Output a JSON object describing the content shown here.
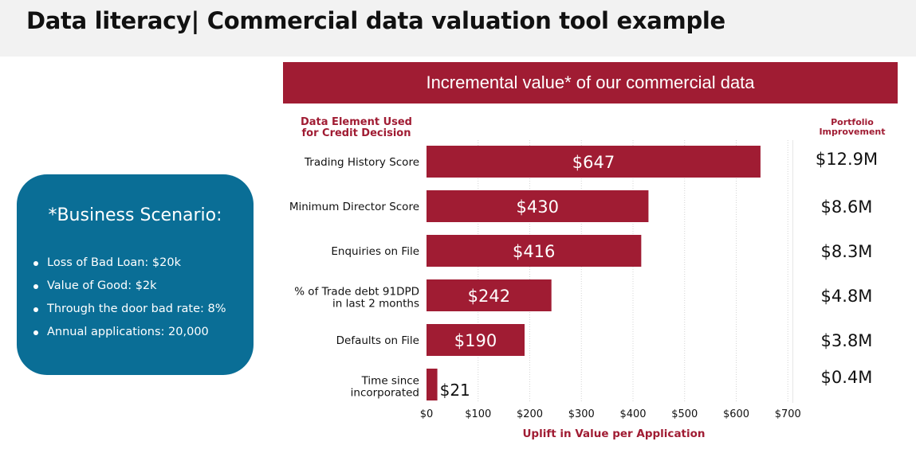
{
  "page": {
    "title": "Data literacy| Commercial data valuation tool example"
  },
  "scenario": {
    "title": "*Business Scenario:",
    "items": [
      "Loss of Bad Loan: $20k",
      "Value of Good: $2k",
      "Through the door bad rate: 8%",
      "Annual applications:  20,000"
    ]
  },
  "chart_data": {
    "type": "bar",
    "orientation": "horizontal",
    "title": "Incremental value* of our commercial data",
    "category_header": [
      "Data Element Used",
      "for Credit Decision"
    ],
    "right_header": [
      "Portfolio",
      "Improvement"
    ],
    "xlabel": "Uplift in Value per Application",
    "categories": [
      [
        "Trading History Score"
      ],
      [
        "Minimum Director Score"
      ],
      [
        "Enquiries on File"
      ],
      [
        "% of Trade debt 91DPD",
        "in last 2 months"
      ],
      [
        "Defaults on File"
      ],
      [
        "Time since",
        "incorporated"
      ]
    ],
    "values": [
      647,
      430,
      416,
      242,
      190,
      21
    ],
    "data_labels": [
      "$647",
      "$430",
      "$416",
      "$242",
      "$190",
      "$21"
    ],
    "portfolio_improvement": [
      "$12.9M",
      "$8.6M",
      "$8.3M",
      "$4.8M",
      "$3.8M",
      "$0.4M"
    ],
    "xlim": [
      0,
      700
    ],
    "xticks": [
      0,
      100,
      200,
      300,
      400,
      500,
      600,
      700
    ],
    "xtick_labels": [
      "$0",
      "$100",
      "$200",
      "$300",
      "$400",
      "$500",
      "$600",
      "$700"
    ],
    "grid": "vertical dotted",
    "bar_color": "#a01c33"
  },
  "colors": {
    "accent": "#a01c33",
    "scenario_panel": "#0a6e96",
    "header_band": "#f2f2f2"
  }
}
